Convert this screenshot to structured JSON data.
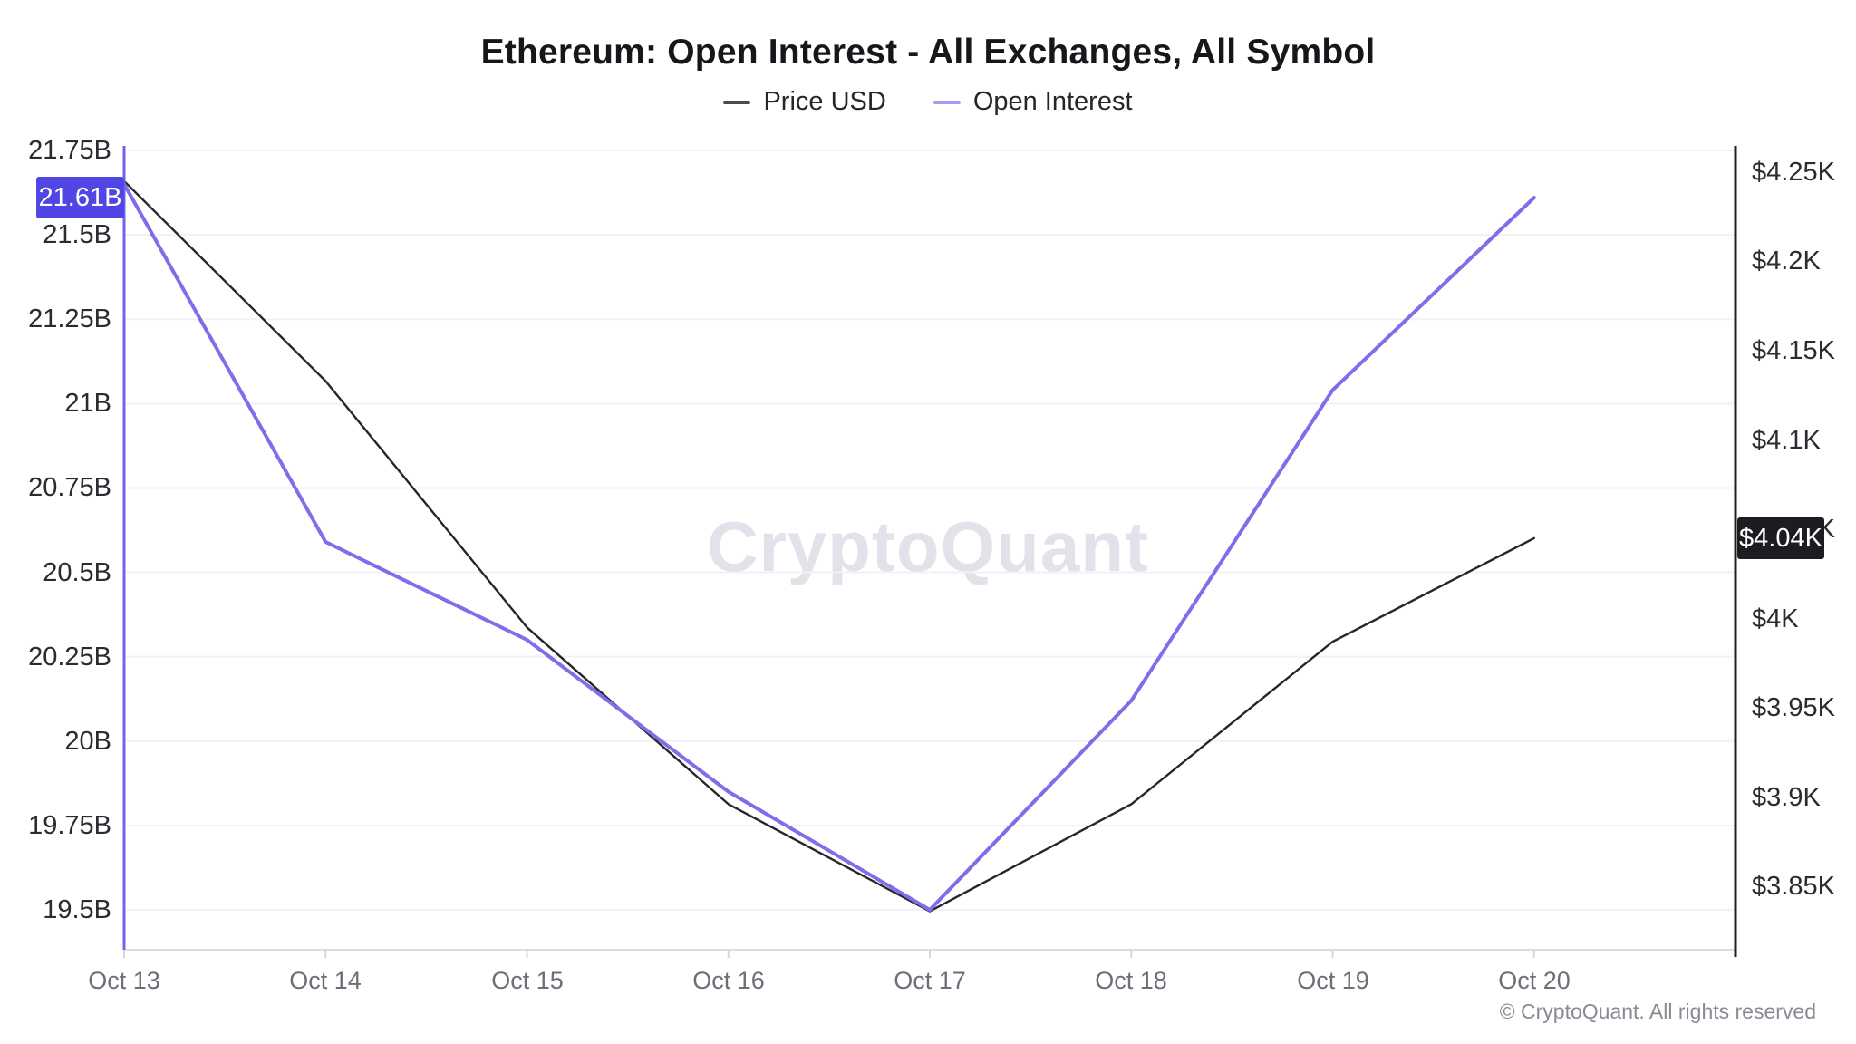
{
  "title": "Ethereum: Open Interest - All Exchanges, All Symbol",
  "legend": {
    "items": [
      {
        "label": "Price USD",
        "color": "#4a4a52"
      },
      {
        "label": "Open Interest",
        "color": "#a49cf4"
      }
    ]
  },
  "watermark": "CryptoQuant",
  "footer": "© CryptoQuant. All rights reserved",
  "chart_data": {
    "type": "line",
    "title": "Ethereum: Open Interest - All Exchanges, All Symbol",
    "x_categories": [
      "Oct 13",
      "Oct 14",
      "Oct 15",
      "Oct 16",
      "Oct 17",
      "Oct 18",
      "Oct 19",
      "Oct 20"
    ],
    "series": [
      {
        "name": "Price USD",
        "axis": "right",
        "color": "#26262b",
        "width": 2.4,
        "values": [
          4.245,
          4.133,
          3.995,
          3.896,
          3.836,
          3.896,
          3.987,
          4.045
        ]
      },
      {
        "name": "Open Interest",
        "axis": "left",
        "color": "#7c6fe9",
        "width": 4,
        "values": [
          21.65,
          20.59,
          20.3,
          19.85,
          19.5,
          20.12,
          21.04,
          21.61
        ]
      }
    ],
    "left_axis": {
      "min": 19.5,
      "max": 21.75,
      "tick_step": 0.25,
      "tick_labels": [
        "21.75B",
        "21.5B",
        "21.25B",
        "21B",
        "20.75B",
        "20.5B",
        "20.25B",
        "20B",
        "19.75B",
        "19.5B"
      ],
      "axis_color": "#7166e7",
      "last_value_badge": {
        "label": "21.61B",
        "value": 21.61,
        "bg": "#4f46e5",
        "fg": "#ffffff"
      }
    },
    "right_axis": {
      "min": 3.85,
      "max": 4.25,
      "tick_step": 0.05,
      "tick_labels": [
        "$4.25K",
        "$4.2K",
        "$4.15K",
        "$4.1K",
        "$4.05K",
        "$4K",
        "$3.95K",
        "$3.9K",
        "$3.85K"
      ],
      "axis_color": "#202025",
      "last_value_badge": {
        "label": "$4.04K",
        "value": 4.045,
        "bg": "#1c1c21",
        "fg": "#ffffff"
      }
    },
    "grid": "horizontal",
    "legend_position": "top"
  }
}
